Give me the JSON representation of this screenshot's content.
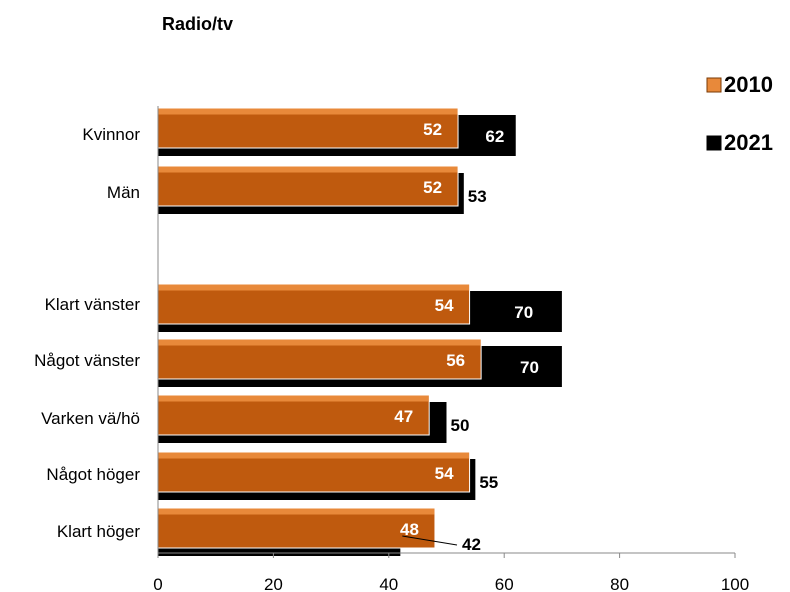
{
  "chart_data": {
    "type": "bar",
    "orientation": "horizontal",
    "title": "Radio/tv",
    "categories": [
      "Kvinnor",
      "Män",
      "",
      "Klart vänster",
      "Något vänster",
      "Varken vä/hö",
      "Något höger",
      "Klart höger"
    ],
    "series": [
      {
        "name": "2010",
        "values": [
          52,
          52,
          null,
          54,
          56,
          47,
          54,
          48
        ],
        "color": "#e8893a"
      },
      {
        "name": "2021",
        "values": [
          62,
          53,
          null,
          70,
          70,
          50,
          55,
          42
        ],
        "color": "#000000"
      }
    ],
    "xlim": [
      0,
      100
    ],
    "xticks": [
      0,
      20,
      40,
      60,
      80,
      100
    ],
    "legend_position": "right",
    "grid": false
  }
}
